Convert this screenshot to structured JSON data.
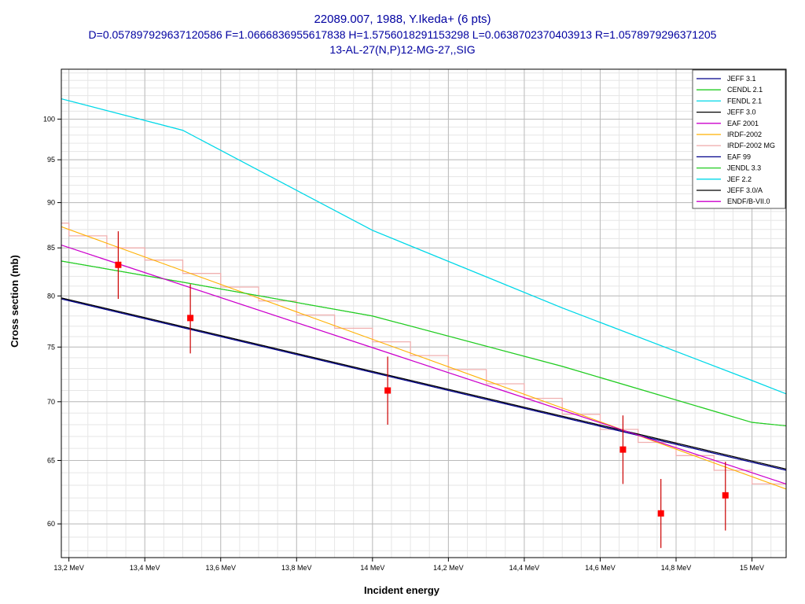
{
  "chart_data": {
    "type": "line",
    "title_lines": [
      "22089.007, 1988, Y.Ikeda+ (6 pts)",
      "D=0.057897929637120586 F=1.0666836955617838 H=1.5756018291153298 L=0.0638702370403913 R=1.0578979296371205",
      "13-AL-27(N,P)12-MG-27,,SIG"
    ],
    "xlabel": "Incident energy",
    "ylabel": "Cross section (mb)",
    "xlim": [
      13.18,
      15.09
    ],
    "ylim": [
      57.5,
      106.5
    ],
    "y_scale": "log",
    "grid": true,
    "legend_position": "top-right",
    "x_ticks": [
      {
        "value": 13.2,
        "label": "13,2 MeV"
      },
      {
        "value": 13.4,
        "label": "13,4 MeV"
      },
      {
        "value": 13.6,
        "label": "13,6 MeV"
      },
      {
        "value": 13.8,
        "label": "13,8 MeV"
      },
      {
        "value": 14.0,
        "label": "14 MeV"
      },
      {
        "value": 14.2,
        "label": "14,2 MeV"
      },
      {
        "value": 14.4,
        "label": "14,4 MeV"
      },
      {
        "value": 14.6,
        "label": "14,6 MeV"
      },
      {
        "value": 14.8,
        "label": "14,8 MeV"
      },
      {
        "value": 15.0,
        "label": "15 MeV"
      }
    ],
    "y_ticks": [
      {
        "value": 60,
        "label": "60"
      },
      {
        "value": 65,
        "label": "65"
      },
      {
        "value": 70,
        "label": "70"
      },
      {
        "value": 75,
        "label": "75"
      },
      {
        "value": 80,
        "label": "80"
      },
      {
        "value": 85,
        "label": "85"
      },
      {
        "value": 90,
        "label": "90"
      },
      {
        "value": 95,
        "label": "95"
      },
      {
        "value": 100,
        "label": "100"
      }
    ],
    "series": [
      {
        "name": "JEFF 3.1",
        "color": "#00008b",
        "style": "line",
        "points": [
          [
            13.18,
            79.7
          ],
          [
            15.09,
            64.2
          ]
        ]
      },
      {
        "name": "CENDL 2.1",
        "color": "#22cc22",
        "style": "line",
        "points": [
          [
            13.18,
            83.6
          ],
          [
            13.5,
            81.4
          ],
          [
            14.0,
            78.0
          ],
          [
            14.5,
            73.2
          ],
          [
            15.0,
            68.2
          ],
          [
            15.09,
            67.9
          ]
        ]
      },
      {
        "name": "FENDL 2.1",
        "color": "#00d8e8",
        "style": "line",
        "points": [
          [
            13.18,
            102.6
          ],
          [
            13.5,
            98.6
          ],
          [
            14.0,
            86.9
          ],
          [
            14.5,
            78.8
          ],
          [
            15.0,
            71.9
          ],
          [
            15.09,
            70.7
          ]
        ]
      },
      {
        "name": "JEFF 3.0",
        "color": "#000000",
        "style": "line",
        "points": [
          [
            13.18,
            79.8
          ],
          [
            15.09,
            64.3
          ]
        ]
      },
      {
        "name": "EAF 2001",
        "color": "#cc00cc",
        "style": "line",
        "points": [
          [
            13.18,
            85.3
          ],
          [
            15.09,
            63.1
          ]
        ]
      },
      {
        "name": "IRDF-2002",
        "color": "#ffb000",
        "style": "line",
        "points": [
          [
            13.18,
            87.3
          ],
          [
            15.09,
            62.7
          ]
        ]
      },
      {
        "name": "IRDF-2002 MG",
        "color": "#f0b0b0",
        "style": "step",
        "edges": [
          13.1,
          13.2,
          13.3,
          13.4,
          13.5,
          13.6,
          13.7,
          13.8,
          13.9,
          14.0,
          14.1,
          14.2,
          14.3,
          14.4,
          14.5,
          14.6,
          14.7,
          14.8,
          14.9,
          15.0,
          15.1
        ],
        "values": [
          87.7,
          86.3,
          85.0,
          83.7,
          82.3,
          80.9,
          79.5,
          78.1,
          76.8,
          75.5,
          74.2,
          72.9,
          71.6,
          70.3,
          68.9,
          67.6,
          66.5,
          65.4,
          64.2,
          63.1
        ]
      },
      {
        "name": "EAF 99",
        "color": "#00008b",
        "style": "line",
        "points": [
          [
            13.18,
            79.7
          ],
          [
            15.09,
            64.2
          ]
        ]
      },
      {
        "name": "JENDL 3.3",
        "color": "#22cc22",
        "style": "line",
        "points": [
          [
            13.18,
            83.6
          ],
          [
            13.5,
            81.4
          ],
          [
            14.0,
            78.0
          ],
          [
            14.5,
            73.2
          ],
          [
            15.0,
            68.2
          ],
          [
            15.09,
            67.9
          ]
        ]
      },
      {
        "name": "JEF 2.2",
        "color": "#00d8e8",
        "style": "line",
        "points": [
          [
            13.18,
            102.6
          ],
          [
            13.5,
            98.6
          ],
          [
            14.0,
            86.9
          ],
          [
            14.5,
            78.8
          ],
          [
            15.0,
            71.9
          ],
          [
            15.09,
            70.7
          ]
        ]
      },
      {
        "name": "JEFF 3.0/A",
        "color": "#000000",
        "style": "line",
        "points": [
          [
            13.18,
            79.8
          ],
          [
            15.09,
            64.3
          ]
        ]
      },
      {
        "name": "ENDF/B-VII.0",
        "color": "#cc00cc",
        "style": "line",
        "points": [
          [
            13.18,
            85.3
          ],
          [
            15.09,
            63.1
          ]
        ]
      }
    ],
    "experimental_points": [
      {
        "x": 13.33,
        "y": 83.2,
        "err_low": 79.7,
        "err_high": 86.8
      },
      {
        "x": 13.52,
        "y": 77.8,
        "err_low": 74.4,
        "err_high": 81.2
      },
      {
        "x": 14.04,
        "y": 71.0,
        "err_low": 68.0,
        "err_high": 74.1
      },
      {
        "x": 14.66,
        "y": 65.9,
        "err_low": 63.1,
        "err_high": 68.8
      },
      {
        "x": 14.76,
        "y": 60.8,
        "err_low": 58.2,
        "err_high": 63.5
      },
      {
        "x": 14.93,
        "y": 62.2,
        "err_low": 59.5,
        "err_high": 64.9
      }
    ],
    "point_color": "#ff0000"
  }
}
